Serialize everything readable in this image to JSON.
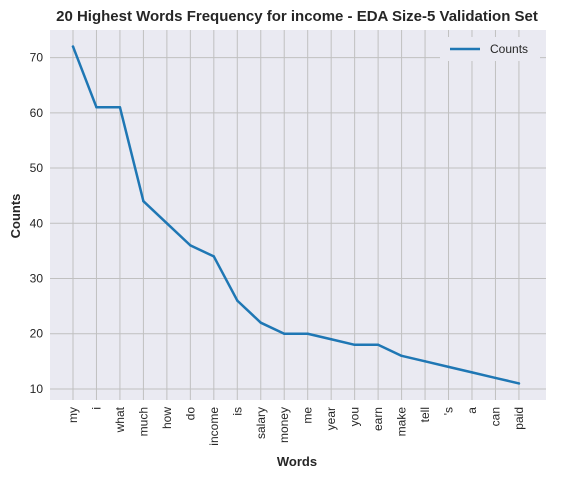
{
  "chart_data": {
    "type": "line",
    "title": "20 Highest Words Frequency for income - EDA Size-5 Validation Set",
    "xlabel": "Words",
    "ylabel": "Counts",
    "categories": [
      "my",
      "i",
      "what",
      "much",
      "how",
      "do",
      "income",
      "is",
      "salary",
      "money",
      "me",
      "year",
      "you",
      "earn",
      "make",
      "tell",
      "'s",
      "a",
      "can",
      "paid"
    ],
    "series": [
      {
        "name": "Counts",
        "values": [
          72,
          61,
          61,
          44,
          40,
          36,
          34,
          26,
          22,
          20,
          20,
          19,
          18,
          18,
          16,
          15,
          14,
          13,
          12,
          11
        ]
      }
    ],
    "ylim": [
      8,
      75
    ],
    "yticks": [
      10,
      20,
      30,
      40,
      50,
      60,
      70
    ],
    "grid": true,
    "legend_position": "top-right",
    "colors": {
      "line": "#1f77b4",
      "plot_bg": "#eaeaf2",
      "grid": "#c0c0c0"
    }
  }
}
